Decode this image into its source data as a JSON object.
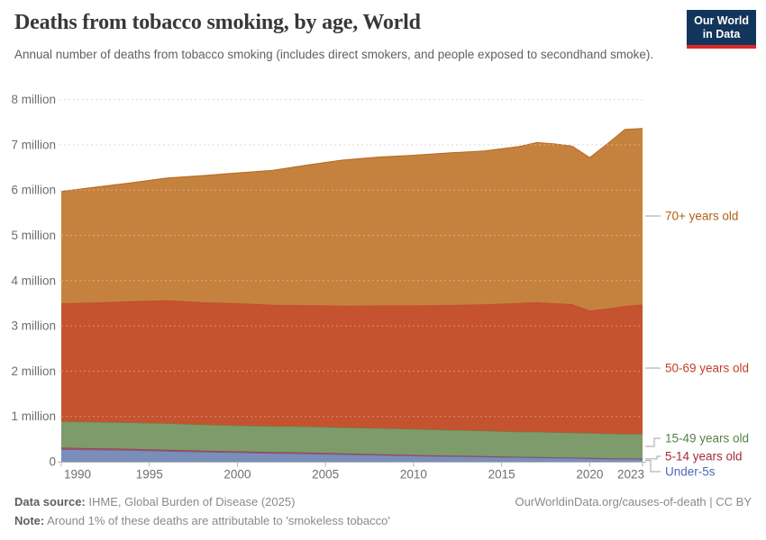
{
  "header": {
    "title": "Deaths from tobacco smoking, by age, World",
    "subtitle": "Annual number of deaths from tobacco smoking (includes direct smokers, and people exposed to secondhand smoke).",
    "logo": {
      "line1": "Our World",
      "line2": "in Data",
      "bg_color": "#12355B",
      "stripe_color": "#DC2826"
    }
  },
  "footer": {
    "source_label": "Data source:",
    "source_text": " IHME, Global Burden of Disease (2025)",
    "note_label": "Note:",
    "note_text": " Around 1% of these deaths are attributable to 'smokeless tobacco'",
    "link_text": "OurWorldinData.org/causes-of-death | CC BY"
  },
  "chart_data": {
    "type": "area",
    "stacked": true,
    "title": "Deaths from tobacco smoking, by age, World",
    "xlabel": "",
    "ylabel": "",
    "y_unit": "million deaths",
    "xlim": [
      1990,
      2023
    ],
    "ylim": [
      0,
      8
    ],
    "grid": true,
    "legend_position": "right-edge-labels",
    "x": [
      1990,
      1992,
      1994,
      1996,
      1998,
      2000,
      2002,
      2004,
      2006,
      2008,
      2010,
      2012,
      2014,
      2016,
      2017,
      2018,
      2019,
      2020,
      2021,
      2022,
      2023
    ],
    "series": [
      {
        "name": "Under-5s",
        "fill": "#7B8EBA",
        "color": "#4C6BB3",
        "values": [
          0.27,
          0.26,
          0.25,
          0.23,
          0.215,
          0.2,
          0.185,
          0.175,
          0.16,
          0.145,
          0.13,
          0.118,
          0.107,
          0.093,
          0.09,
          0.085,
          0.08,
          0.07,
          0.065,
          0.06,
          0.055
        ]
      },
      {
        "name": "5-14 years old",
        "fill": "#A34E60",
        "color": "#A22C3C",
        "values": [
          0.04,
          0.037,
          0.034,
          0.032,
          0.031,
          0.03,
          0.028,
          0.027,
          0.025,
          0.022,
          0.02,
          0.018,
          0.016,
          0.015,
          0.015,
          0.012,
          0.01,
          0.015,
          0.013,
          0.012,
          0.012
        ]
      },
      {
        "name": "15-49 years old",
        "fill": "#7E9B6B",
        "color": "#578145",
        "values": [
          0.58,
          0.58,
          0.58,
          0.585,
          0.575,
          0.57,
          0.572,
          0.575,
          0.57,
          0.572,
          0.57,
          0.565,
          0.56,
          0.555,
          0.555,
          0.552,
          0.55,
          0.545,
          0.542,
          0.543,
          0.543
        ]
      },
      {
        "name": "50-69 years old",
        "fill": "#C5532F",
        "color": "#BF4028",
        "values": [
          2.61,
          2.64,
          2.68,
          2.72,
          2.7,
          2.7,
          2.68,
          2.68,
          2.69,
          2.71,
          2.73,
          2.76,
          2.79,
          2.84,
          2.86,
          2.85,
          2.84,
          2.71,
          2.76,
          2.825,
          2.86
        ]
      },
      {
        "name": "70+ years old",
        "fill": "#C5823E",
        "color": "#B16214",
        "values": [
          2.47,
          2.55,
          2.62,
          2.7,
          2.8,
          2.88,
          2.97,
          3.1,
          3.22,
          3.28,
          3.32,
          3.36,
          3.39,
          3.46,
          3.53,
          3.52,
          3.49,
          3.38,
          3.64,
          3.9,
          3.89
        ]
      }
    ],
    "x_ticks": [
      1990,
      1995,
      2000,
      2005,
      2010,
      2015,
      2020,
      2023
    ],
    "y_ticks": [
      {
        "value": 0,
        "label": "0"
      },
      {
        "value": 1,
        "label": "1 million"
      },
      {
        "value": 2,
        "label": "2 million"
      },
      {
        "value": 3,
        "label": "3 million"
      },
      {
        "value": 4,
        "label": "4 million"
      },
      {
        "value": 5,
        "label": "5 million"
      },
      {
        "value": 6,
        "label": "6 million"
      },
      {
        "value": 7,
        "label": "7 million"
      },
      {
        "value": 8,
        "label": "8 million"
      }
    ]
  }
}
